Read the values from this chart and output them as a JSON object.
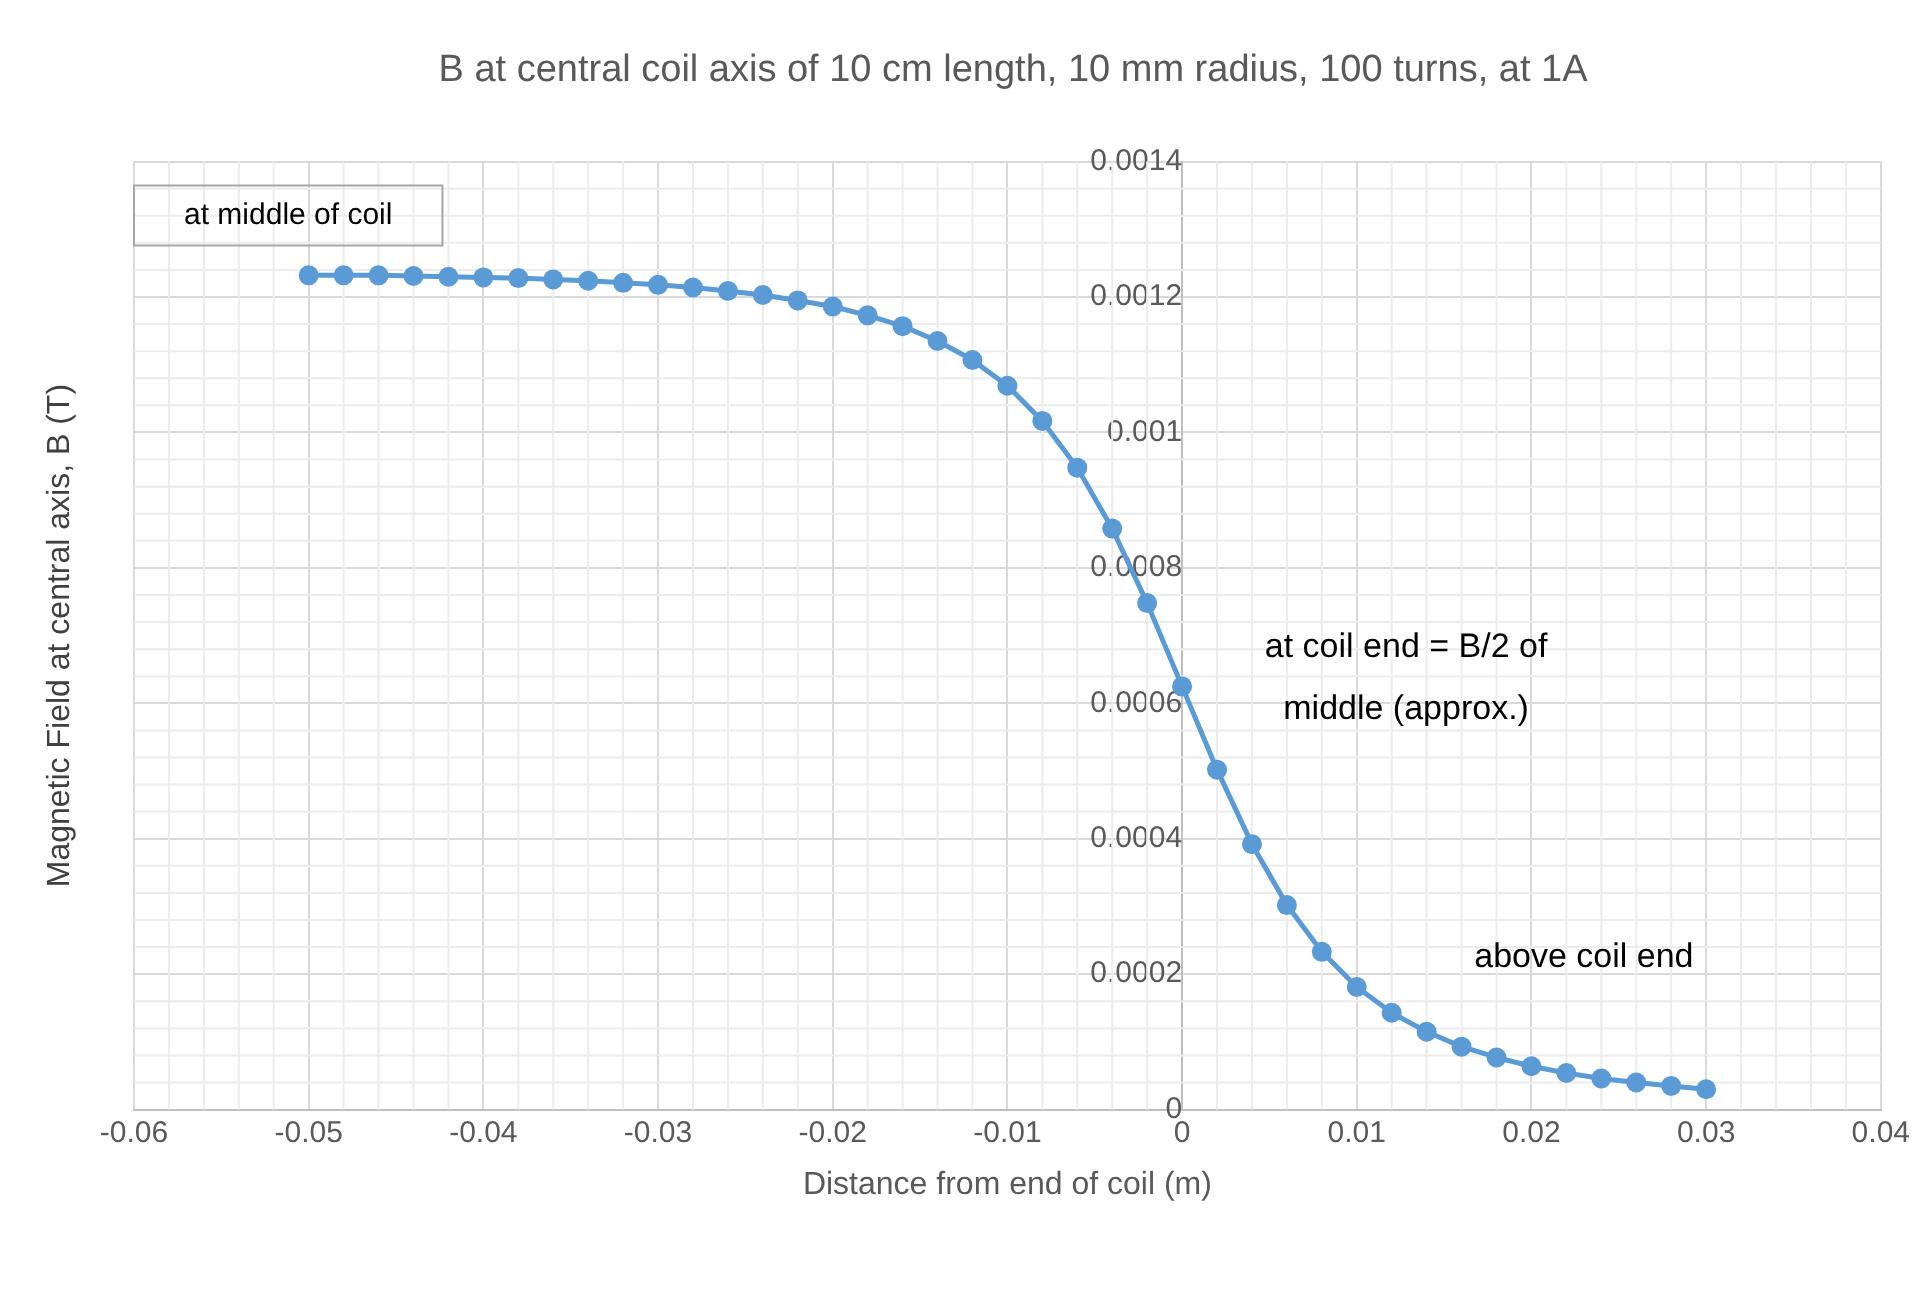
{
  "chart_data": {
    "type": "line",
    "title": "B at central coil axis of 10 cm length, 10 mm radius, 100 turns, at 1A",
    "xlabel": "Distance from end of coil (m)",
    "ylabel": "Magnetic Field at central axis, B (T)",
    "annotations": [
      "at middle of coil",
      "at coil end = B/2 of middle (approx.)",
      "above coil end"
    ],
    "x": [
      -0.05,
      -0.048,
      -0.046,
      -0.044,
      -0.042,
      -0.04,
      -0.038,
      -0.036,
      -0.034,
      -0.032,
      -0.03,
      -0.028,
      -0.026,
      -0.024,
      -0.022,
      -0.02,
      -0.018,
      -0.016,
      -0.014,
      -0.012,
      -0.01,
      -0.008,
      -0.006,
      -0.004,
      -0.002,
      0,
      0.002,
      0.004,
      0.006,
      0.008,
      0.01,
      0.012,
      0.014,
      0.016,
      0.018,
      0.02,
      0.022,
      0.024,
      0.026,
      0.028,
      0.03
    ],
    "series": [
      {
        "color": "#5b9bd5",
        "values": [
          0.001232,
          0.001232,
          0.001232,
          0.001231,
          0.00123,
          0.001229,
          0.001228,
          0.001226,
          0.001224,
          0.001221,
          0.001218,
          0.001214,
          0.001209,
          0.001203,
          0.001195,
          0.001186,
          0.001173,
          0.001157,
          0.001135,
          0.001107,
          0.001069,
          0.001017,
          0.000948,
          0.000858,
          0.000748,
          0.000625,
          0.000502,
          0.000392,
          0.000302,
          0.000233,
          0.000181,
          0.000143,
          0.000115,
          9.3e-05,
          7.7e-05,
          6.4e-05,
          5.4e-05,
          4.6e-05,
          4e-05,
          3.5e-05,
          3e-05
        ]
      }
    ],
    "xlim": [
      -0.06,
      0.04
    ],
    "xticks": [
      -0.06,
      -0.05,
      -0.04,
      -0.03,
      -0.02,
      -0.01,
      0,
      0.01,
      0.02,
      0.03,
      0.04
    ],
    "ylim": [
      0,
      0.0014
    ],
    "yticks": [
      0,
      0.0002,
      0.0004,
      0.0006,
      0.0008,
      0.001,
      0.0012,
      0.0014
    ],
    "grid": true,
    "marker": "circle",
    "line_style": "solid"
  }
}
